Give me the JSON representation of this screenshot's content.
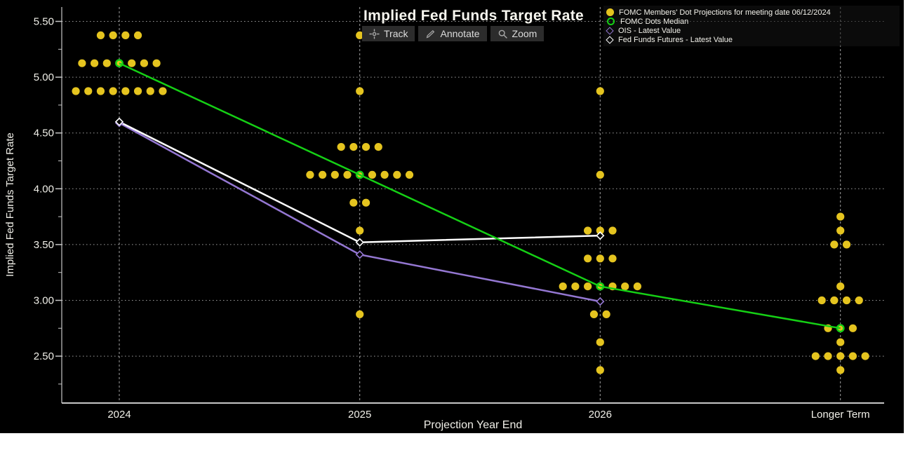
{
  "title": "Implied Fed Funds Target Rate",
  "toolbar": {
    "track_label": "Track",
    "annotate_label": "Annotate",
    "zoom_label": "Zoom"
  },
  "legend": {
    "items": [
      {
        "label": "FOMC Members' Dot Projections for meeting date 06/12/2024",
        "marker": "filled-circle",
        "color": "#E5C41F"
      },
      {
        "label": "FOMC Dots Median",
        "marker": "open-circle",
        "color": "#15D015"
      },
      {
        "label": "OIS - Latest Value",
        "marker": "open-diamond",
        "color": "#9477D2"
      },
      {
        "label": "Fed Funds Futures - Latest Value",
        "marker": "open-diamond",
        "color": "#FFFFFF"
      }
    ]
  },
  "colors": {
    "background": "#000000",
    "dots": "#E5C41F",
    "median_line": "#15D015",
    "ois_line": "#9477D2",
    "futures_line": "#FFFFFF",
    "grid": "#C9C9C9",
    "axis": "#C6C6C6",
    "text": "#F0EFE8",
    "button_bg": "#2C2C2C"
  },
  "chart_data": {
    "type": "scatter",
    "title": "Implied Fed Funds Target Rate",
    "xlabel": "Projection Year End",
    "ylabel": "Implied Fed Funds Target Rate",
    "categories": [
      "2024",
      "2025",
      "2026",
      "Longer Term"
    ],
    "y_ticks": [
      5.5,
      5.0,
      4.5,
      4.0,
      3.5,
      3.0,
      2.5
    ],
    "y_minor_ticks": [
      5.25,
      4.75,
      4.25,
      3.75,
      3.25,
      2.75,
      2.25
    ],
    "ylim": [
      2.1,
      5.63
    ],
    "legend_position": "top-right",
    "grid": "dotted horizontal lines at 0.50 steps, dashed vertical lines at each category",
    "dot_columns": [
      {
        "category": "2024",
        "stacks": [
          {
            "rate": 5.375,
            "count": 4
          },
          {
            "rate": 5.125,
            "count": 7
          },
          {
            "rate": 4.875,
            "count": 8
          }
        ]
      },
      {
        "category": "2025",
        "stacks": [
          {
            "rate": 5.375,
            "count": 1
          },
          {
            "rate": 4.875,
            "count": 1
          },
          {
            "rate": 4.375,
            "count": 4
          },
          {
            "rate": 4.125,
            "count": 9
          },
          {
            "rate": 3.875,
            "count": 2
          },
          {
            "rate": 3.625,
            "count": 1
          },
          {
            "rate": 2.875,
            "count": 1
          }
        ]
      },
      {
        "category": "2026",
        "stacks": [
          {
            "rate": 4.875,
            "count": 1
          },
          {
            "rate": 4.125,
            "count": 1
          },
          {
            "rate": 3.625,
            "count": 3
          },
          {
            "rate": 3.375,
            "count": 3
          },
          {
            "rate": 3.125,
            "count": 7
          },
          {
            "rate": 2.875,
            "count": 2
          },
          {
            "rate": 2.625,
            "count": 1
          },
          {
            "rate": 2.375,
            "count": 1
          }
        ]
      },
      {
        "category": "Longer Term",
        "stacks": [
          {
            "rate": 3.75,
            "count": 1
          },
          {
            "rate": 3.625,
            "count": 1
          },
          {
            "rate": 3.5,
            "count": 2
          },
          {
            "rate": 3.125,
            "count": 1
          },
          {
            "rate": 3.0,
            "count": 4
          },
          {
            "rate": 2.75,
            "count": 3
          },
          {
            "rate": 2.625,
            "count": 1
          },
          {
            "rate": 2.5,
            "count": 5
          },
          {
            "rate": 2.375,
            "count": 1
          }
        ]
      }
    ],
    "series": [
      {
        "name": "FOMC Members' Dot Projections for meeting date 06/12/2024",
        "type": "dots",
        "color": "#E5C41F"
      },
      {
        "name": "FOMC Dots Median",
        "type": "line",
        "marker": "open-circle",
        "color": "#15D015",
        "x": [
          "2024",
          "2025",
          "2026",
          "Longer Term"
        ],
        "values": [
          5.125,
          4.125,
          3.125,
          2.75
        ]
      },
      {
        "name": "OIS - Latest Value",
        "type": "line",
        "marker": "open-diamond",
        "color": "#9477D2",
        "x": [
          "2024",
          "2025",
          "2026"
        ],
        "values": [
          4.59,
          3.41,
          2.99
        ]
      },
      {
        "name": "Fed Funds Futures - Latest Value",
        "type": "line",
        "marker": "open-diamond",
        "color": "#FFFFFF",
        "x": [
          "2024",
          "2025",
          "2026"
        ],
        "values": [
          4.6,
          3.52,
          3.58
        ]
      }
    ]
  }
}
